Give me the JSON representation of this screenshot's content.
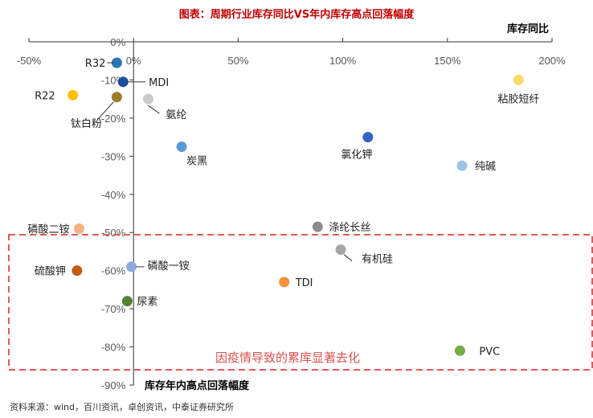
{
  "chart_data": {
    "type": "scatter",
    "title": "图表：周期行业库存同比VS年内库存高点回落幅度",
    "xlabel": "库存同比",
    "ylabel": "库存年内高点回落幅度",
    "xlim": [
      -50,
      200
    ],
    "ylim": [
      -90,
      0
    ],
    "x_ticks": [
      "-50%",
      "0%",
      "50%",
      "100%",
      "150%",
      "200%"
    ],
    "y_ticks": [
      "0%",
      "-10%",
      "-20%",
      "-30%",
      "-40%",
      "-50%",
      "-60%",
      "-70%",
      "-80%",
      "-90%"
    ],
    "points": [
      {
        "label": "R32",
        "x": -8,
        "y": -5.5,
        "color": "#2e75b6"
      },
      {
        "label": "MDI",
        "x": -5,
        "y": -10.5,
        "color": "#1f4e9a"
      },
      {
        "label": "R22",
        "x": -29,
        "y": -14,
        "color": "#ffc000"
      },
      {
        "label": "钛白粉",
        "x": -8,
        "y": -14.5,
        "color": "#9c7c2a"
      },
      {
        "label": "氨纶",
        "x": 7,
        "y": -15,
        "color": "#c9c9c9"
      },
      {
        "label": "粘胶短纤",
        "x": 184,
        "y": -10,
        "color": "#ffd966"
      },
      {
        "label": "炭黑",
        "x": 23,
        "y": -27.5,
        "color": "#5b9bd5"
      },
      {
        "label": "氯化钾",
        "x": 112,
        "y": -25,
        "color": "#3563c3"
      },
      {
        "label": "纯碱",
        "x": 157,
        "y": -32.5,
        "color": "#9dc3e6"
      },
      {
        "label": "磷酸二铵",
        "x": -26,
        "y": -49,
        "color": "#f4b183"
      },
      {
        "label": "涤纶长丝",
        "x": 88,
        "y": -48.5,
        "color": "#8c8c8c"
      },
      {
        "label": "有机硅",
        "x": 99,
        "y": -54.5,
        "color": "#a6a6a6"
      },
      {
        "label": "硫酸钾",
        "x": -27,
        "y": -60,
        "color": "#c55a11"
      },
      {
        "label": "磷酸一铵",
        "x": -1,
        "y": -59,
        "color": "#8faadc"
      },
      {
        "label": "TDI",
        "x": 72,
        "y": -63,
        "color": "#f4933a"
      },
      {
        "label": "尿素",
        "x": -3,
        "y": -68,
        "color": "#548235"
      },
      {
        "label": "PVC",
        "x": 156,
        "y": -81,
        "color": "#70ad47"
      }
    ],
    "annotation": "因疫情导致的累库显著去化",
    "source": "资料来源：wind，百川资讯，卓创资讯，中泰证券研究所"
  }
}
